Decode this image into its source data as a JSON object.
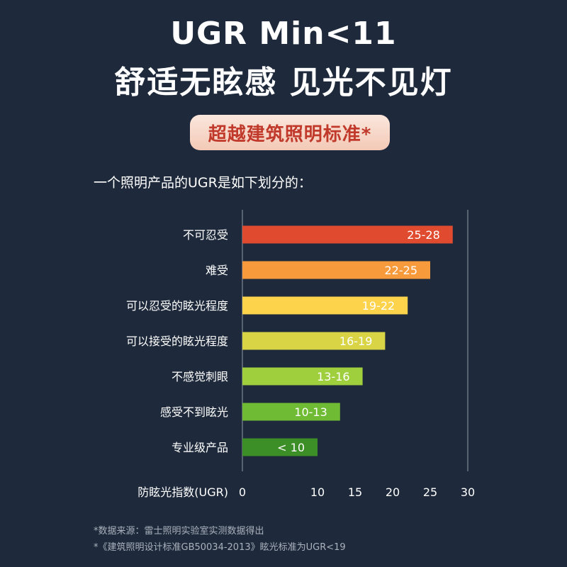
{
  "header": {
    "title_line1": "UGR Min<11",
    "title_line2": "舒适无眩感 见光不见灯",
    "badge": "超越建筑照明标准*"
  },
  "intro_text": "一个照明产品的UGR是如下划分的：",
  "chart_data": {
    "type": "bar",
    "orientation": "horizontal",
    "categories": [
      "不可忍受",
      "难受",
      "可以忍受的眩光程度",
      "可以接受的眩光程度",
      "不感觉刺眼",
      "感受不到眩光",
      "专业级产品"
    ],
    "values": [
      28,
      25,
      22,
      19,
      16,
      13,
      10
    ],
    "data_labels": [
      "25-28",
      "22-25",
      "19-22",
      "16-19",
      "13-16",
      "10-13",
      "< 10"
    ],
    "colors": [
      "#e04b2f",
      "#f79a3c",
      "#fdd34c",
      "#d8d445",
      "#9fcf3c",
      "#6fbb34",
      "#3c8e27"
    ],
    "xlabel": "防眩光指数(UGR)",
    "xlim": [
      0,
      30
    ],
    "xticks": [
      0,
      10,
      15,
      20,
      25,
      30
    ],
    "grid": false
  },
  "footnotes": {
    "line1": "*数据来源：雷士照明实验室实测数据得出",
    "line2": "*《建筑照明设计标准GB50034-2013》眩光标准为UGR<19"
  }
}
